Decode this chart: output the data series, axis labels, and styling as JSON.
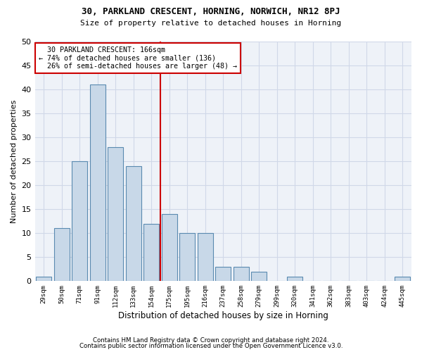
{
  "title1": "30, PARKLAND CRESCENT, HORNING, NORWICH, NR12 8PJ",
  "title2": "Size of property relative to detached houses in Horning",
  "xlabel": "Distribution of detached houses by size in Horning",
  "ylabel": "Number of detached properties",
  "categories": [
    "29sqm",
    "50sqm",
    "71sqm",
    "91sqm",
    "112sqm",
    "133sqm",
    "154sqm",
    "175sqm",
    "195sqm",
    "216sqm",
    "237sqm",
    "258sqm",
    "279sqm",
    "299sqm",
    "320sqm",
    "341sqm",
    "362sqm",
    "383sqm",
    "403sqm",
    "424sqm",
    "445sqm"
  ],
  "values": [
    1,
    11,
    25,
    41,
    28,
    24,
    12,
    14,
    10,
    10,
    3,
    3,
    2,
    0,
    1,
    0,
    0,
    0,
    0,
    0,
    1
  ],
  "bar_color": "#c8d8e8",
  "bar_edge_color": "#5a8ab0",
  "marker_bin_index": 6,
  "marker_label": "30 PARKLAND CRESCENT: 166sqm",
  "smaller_pct": "74%",
  "smaller_count": 136,
  "larger_pct": "26%",
  "larger_count": 48,
  "annotation_line_color": "#cc0000",
  "annotation_box_edge_color": "#cc0000",
  "grid_color": "#d0d8e8",
  "background_color": "#eef2f8",
  "footer1": "Contains HM Land Registry data © Crown copyright and database right 2024.",
  "footer2": "Contains public sector information licensed under the Open Government Licence v3.0.",
  "ylim": [
    0,
    50
  ],
  "yticks": [
    0,
    5,
    10,
    15,
    20,
    25,
    30,
    35,
    40,
    45,
    50
  ]
}
